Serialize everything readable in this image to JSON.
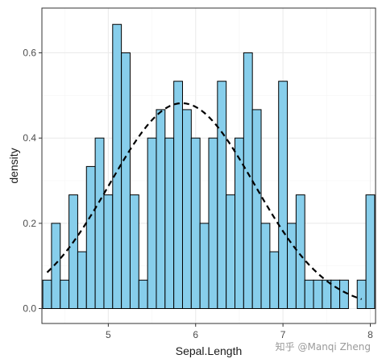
{
  "chart_data": {
    "type": "histogram",
    "xlabel": "Sepal.Length",
    "ylabel": "density",
    "xlim": [
      4.24,
      8.06
    ],
    "ylim": [
      -0.035,
      0.705
    ],
    "x_ticks": [
      5,
      6,
      7,
      8
    ],
    "y_ticks": [
      0.0,
      0.2,
      0.4,
      0.6
    ],
    "x_tick_labels": [
      "5",
      "6",
      "7",
      "8"
    ],
    "y_tick_labels": [
      "0.0",
      "0.2",
      "0.4",
      "0.6"
    ],
    "bin_width": 0.1,
    "bin_start": 4.25,
    "densities": [
      0.0667,
      0.2,
      0.0667,
      0.2667,
      0.1333,
      0.3333,
      0.4,
      0.2667,
      0.6667,
      0.6,
      0.2667,
      0.0667,
      0.4,
      0.4667,
      0.4,
      0.5333,
      0.4667,
      0.4,
      0.2,
      0.4,
      0.5333,
      0.2667,
      0.4,
      0.6,
      0.4667,
      0.2,
      0.1333,
      0.5333,
      0.2,
      0.2667,
      0.0667,
      0.0667,
      0.0667,
      0.0667,
      0.0667,
      0.0,
      0.0667,
      0.2667,
      0.0,
      0.0667
    ],
    "density_curve": {
      "style": "dashed",
      "mean": 5.843,
      "sd": 0.828,
      "x_range": [
        4.3,
        7.9
      ]
    },
    "grid": true,
    "colors": {
      "bar_fill": "#87CEEB",
      "bar_stroke": "#000000",
      "curve": "#000000",
      "grid_major": "#ebebeb",
      "grid_minor": "#f5f5f5",
      "panel_border": "#333333"
    }
  },
  "watermark": "知乎 @Manqi Zheng"
}
